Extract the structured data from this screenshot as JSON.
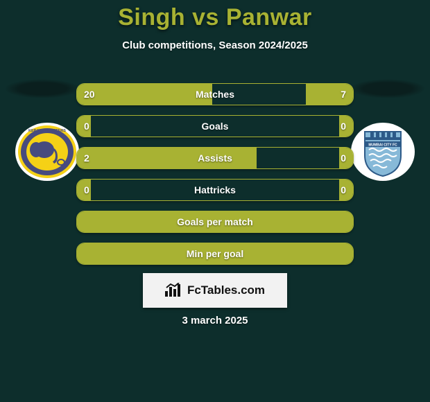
{
  "title": "Singh vs Panwar",
  "subtitle": "Club competitions, Season 2024/2025",
  "date": "3 march 2025",
  "attribution_text": "FcTables.com",
  "colors": {
    "background": "#0d2e2c",
    "accent": "#a8b233",
    "text": "#ffffff"
  },
  "bars": [
    {
      "label": "Matches",
      "left_val": "20",
      "right_val": "7",
      "left_pct": 49,
      "right_pct": 17,
      "full": false
    },
    {
      "label": "Goals",
      "left_val": "0",
      "right_val": "0",
      "left_pct": 5,
      "right_pct": 5,
      "full": false
    },
    {
      "label": "Assists",
      "left_val": "2",
      "right_val": "0",
      "left_pct": 65,
      "right_pct": 5,
      "full": false
    },
    {
      "label": "Hattricks",
      "left_val": "0",
      "right_val": "0",
      "left_pct": 5,
      "right_pct": 5,
      "full": false
    },
    {
      "label": "Goals per match",
      "left_val": "",
      "right_val": "",
      "left_pct": 100,
      "right_pct": 0,
      "full": true
    },
    {
      "label": "Min per goal",
      "left_val": "",
      "right_val": "",
      "left_pct": 100,
      "right_pct": 0,
      "full": true
    }
  ],
  "team_left": {
    "name": "Kerala Blasters",
    "icon": "kerala-blasters-logo",
    "colors": {
      "ring_outer": "#ffffff",
      "ring_inner": "#f5d116",
      "core": "#474b7e"
    }
  },
  "team_right": {
    "name": "Mumbai City FC",
    "icon": "mumbai-city-logo",
    "colors": {
      "ring": "#ffffff",
      "body": "#87b9d8",
      "stripe": "#2d5a88"
    }
  }
}
